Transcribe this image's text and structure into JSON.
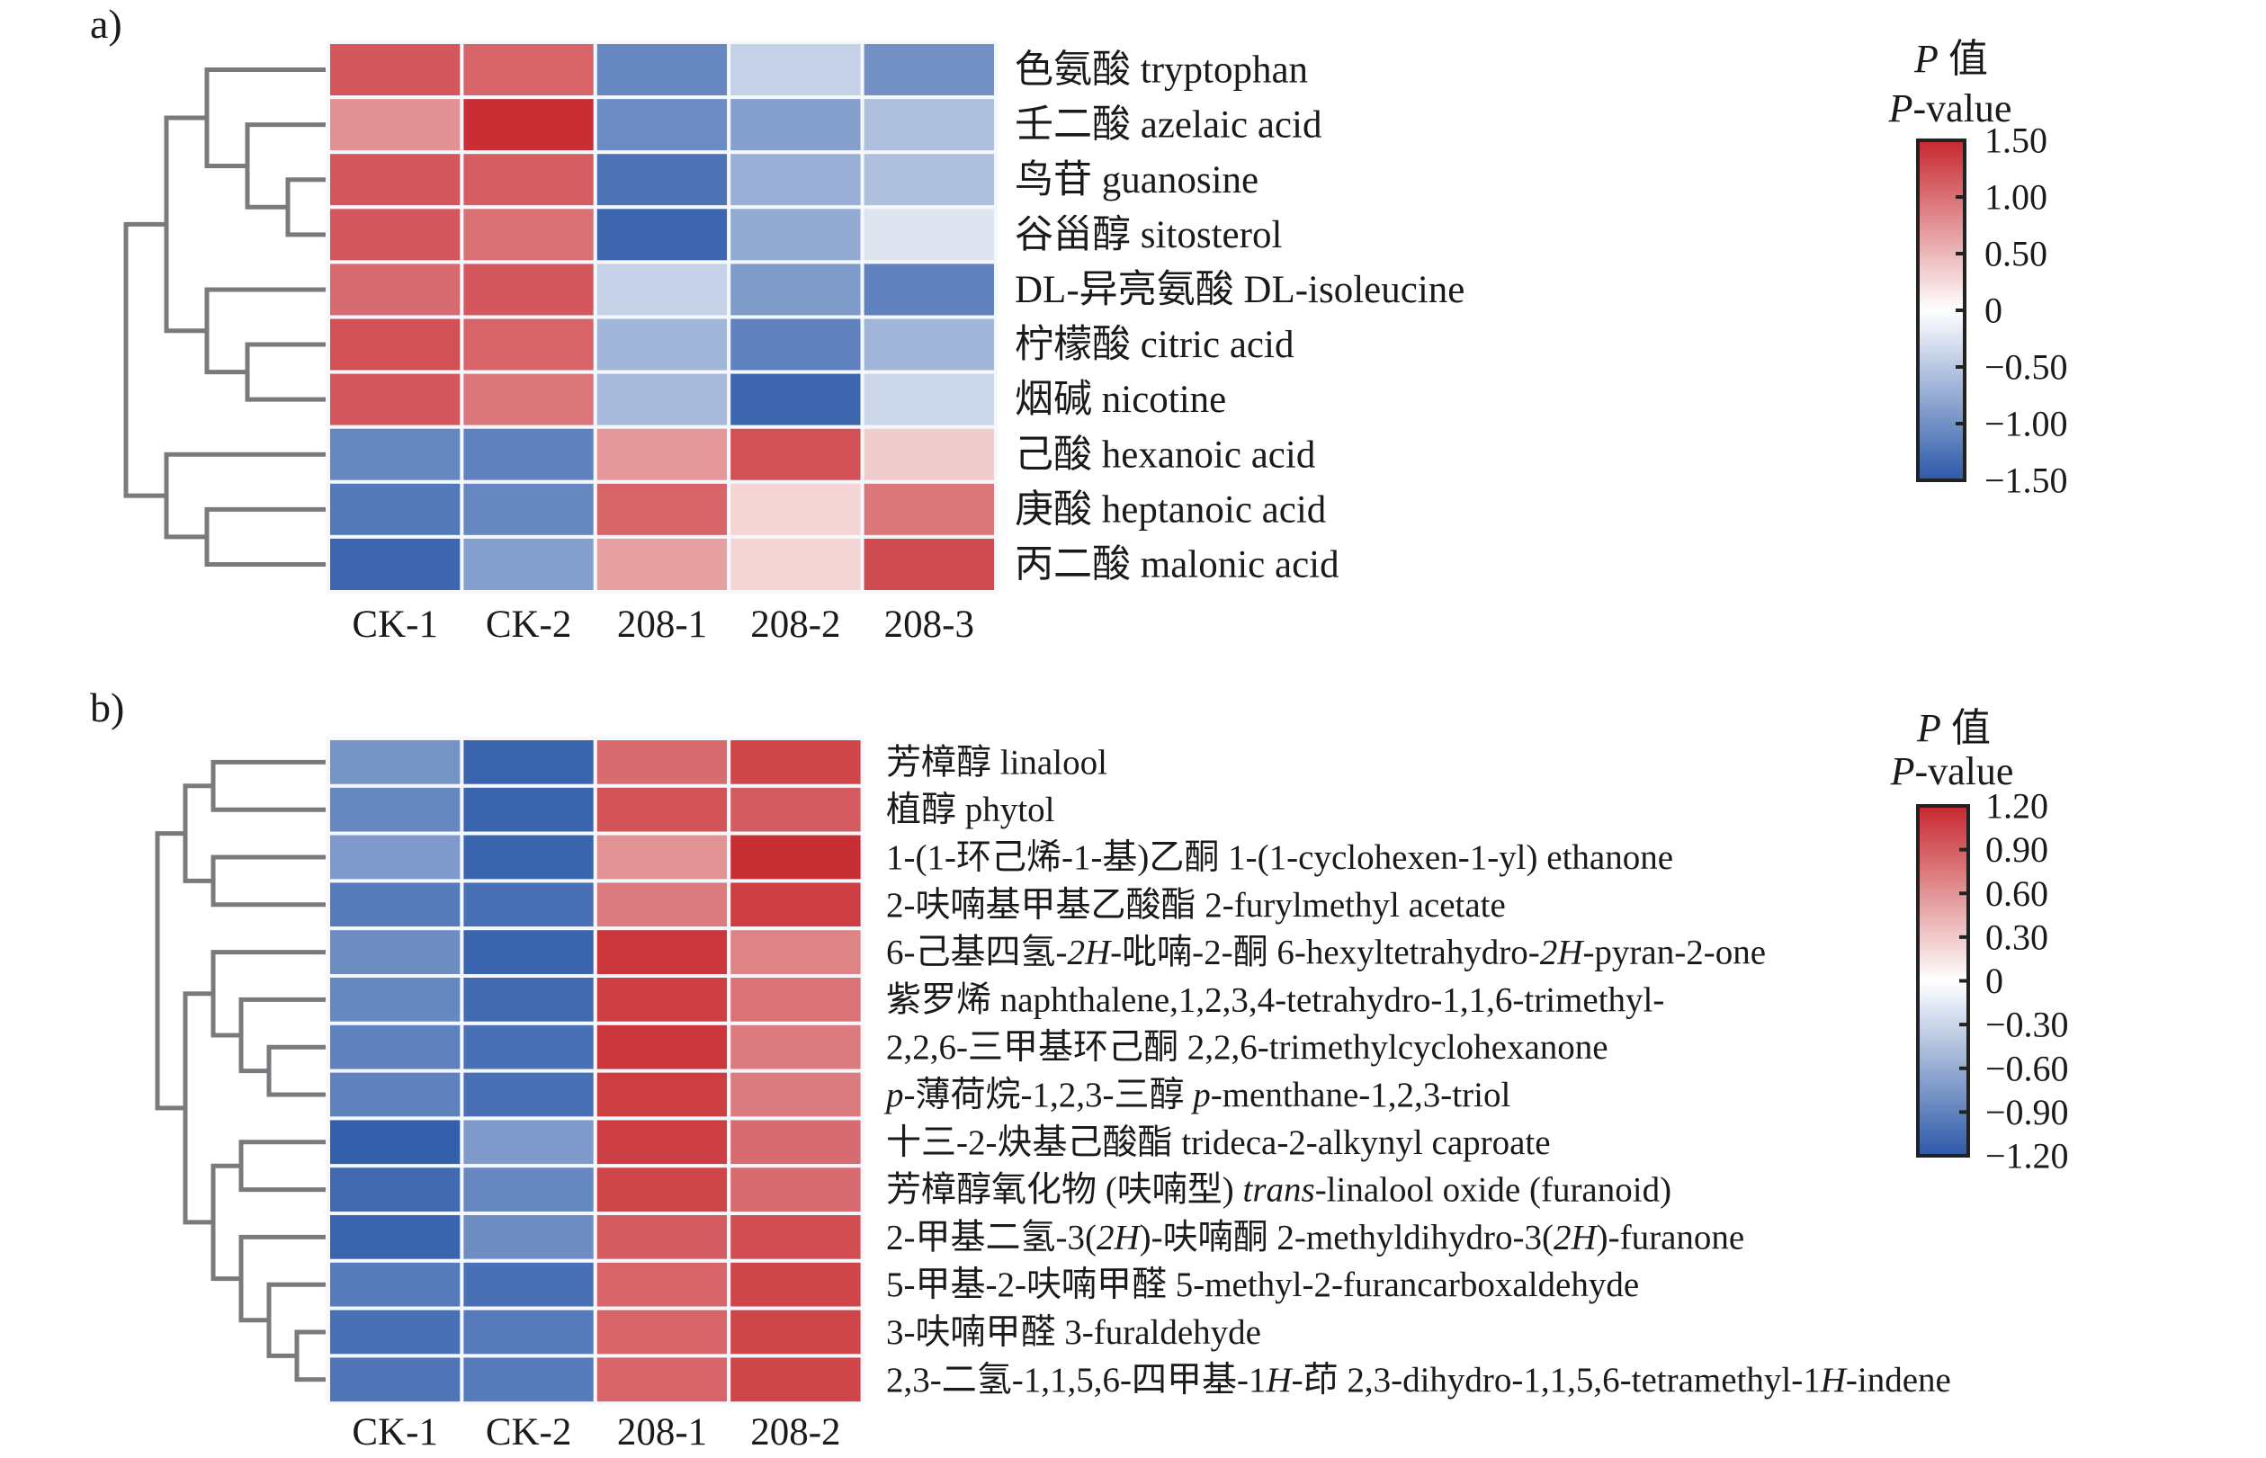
{
  "chart_data": [
    {
      "type": "heatmap",
      "panel_label": "a)",
      "columns": [
        "CK-1",
        "CK-2",
        "208-1",
        "208-2",
        "208-3"
      ],
      "rows": [
        {
          "segments": [
            {
              "t": "色氨酸 tryptophan"
            }
          ]
        },
        {
          "segments": [
            {
              "t": "壬二酸 azelaic acid"
            }
          ]
        },
        {
          "segments": [
            {
              "t": "鸟苷 guanosine"
            }
          ]
        },
        {
          "segments": [
            {
              "t": "谷甾醇 sitosterol"
            }
          ]
        },
        {
          "segments": [
            {
              "t": "DL-异亮氨酸 DL-isoleucine"
            }
          ]
        },
        {
          "segments": [
            {
              "t": "柠檬酸 citric acid"
            }
          ]
        },
        {
          "segments": [
            {
              "t": "烟碱 nicotine"
            }
          ]
        },
        {
          "segments": [
            {
              "t": "己酸 hexanoic acid"
            }
          ]
        },
        {
          "segments": [
            {
              "t": "庚酸 heptanoic acid"
            }
          ]
        },
        {
          "segments": [
            {
              "t": "丙二酸 malonic acid"
            }
          ]
        }
      ],
      "values": [
        [
          1.1,
          1.0,
          -1.0,
          -0.3,
          -0.9
        ],
        [
          0.65,
          1.45,
          -0.95,
          -0.75,
          -0.45
        ],
        [
          1.1,
          1.05,
          -1.2,
          -0.6,
          -0.45
        ],
        [
          1.1,
          0.9,
          -1.35,
          -0.65,
          -0.15
        ],
        [
          0.95,
          1.1,
          -0.3,
          -0.8,
          -1.05
        ],
        [
          1.15,
          1.0,
          -0.55,
          -1.05,
          -0.55
        ],
        [
          1.1,
          0.85,
          -0.5,
          -1.35,
          -0.25
        ],
        [
          -1.0,
          -1.05,
          0.6,
          1.15,
          0.25
        ],
        [
          -1.15,
          -1.0,
          1.0,
          0.2,
          0.85
        ],
        [
          -1.35,
          -0.75,
          0.55,
          0.2,
          1.2
        ]
      ],
      "dendrogram": {
        "merges": [
          [
            2,
            3,
            4.0
          ],
          [
            1,
            "m0",
            3.0
          ],
          [
            0,
            "m1",
            2.0
          ],
          [
            5,
            6,
            3.0
          ],
          [
            4,
            "m3",
            2.0
          ],
          [
            "m2",
            "m4",
            1.0
          ],
          [
            8,
            9,
            2.0
          ],
          [
            7,
            "m6",
            1.0
          ],
          [
            "m5",
            "m7",
            0.0
          ]
        ]
      },
      "legend": {
        "title_italic": "P",
        "title_cjk": " 值",
        "subtitle_italic": "P",
        "subtitle_rest": "-value",
        "range": [
          -1.5,
          1.5
        ],
        "ticks": [
          1.5,
          1.0,
          0.5,
          0,
          -0.5,
          -1.0,
          -1.5
        ],
        "tick_labels": [
          "1.50",
          "1.00",
          "0.50",
          "0",
          "−0.50",
          "−1.00",
          "−1.50"
        ]
      }
    },
    {
      "type": "heatmap",
      "panel_label": "b)",
      "columns": [
        "CK-1",
        "CK-2",
        "208-1",
        "208-2"
      ],
      "rows": [
        {
          "segments": [
            {
              "t": "芳樟醇 linalool"
            }
          ]
        },
        {
          "segments": [
            {
              "t": "植醇 phytol"
            }
          ]
        },
        {
          "segments": [
            {
              "t": "1-(1-环己烯-1-基)乙酮 1-(1-cyclohexen-1-yl) ethanone"
            }
          ]
        },
        {
          "segments": [
            {
              "t": "2-呋喃基甲基乙酸酯 2-furylmethyl acetate"
            }
          ]
        },
        {
          "segments": [
            {
              "t": "6-己基四氢-"
            },
            {
              "t": "2H",
              "i": true
            },
            {
              "t": "-吡喃-2-酮 6-hexyltetrahydro-"
            },
            {
              "t": "2H",
              "i": true
            },
            {
              "t": "-pyran-2-one"
            }
          ]
        },
        {
          "segments": [
            {
              "t": "紫罗烯 naphthalene,1,2,3,4-tetrahydro-1,1,6-trimethyl-"
            }
          ]
        },
        {
          "segments": [
            {
              "t": "2,2,6-三甲基环己酮 2,2,6-trimethylcyclohexanone"
            }
          ]
        },
        {
          "segments": [
            {
              "t": "p",
              "i": true
            },
            {
              "t": "-薄荷烷-1,2,3-三醇 "
            },
            {
              "t": "p",
              "i": true
            },
            {
              "t": "-menthane-1,2,3-triol"
            }
          ]
        },
        {
          "segments": [
            {
              "t": "十三-2-炔基己酸酯 trideca-2-alkynyl caproate"
            }
          ]
        },
        {
          "segments": [
            {
              "t": "芳樟醇氧化物 (呋喃型) "
            },
            {
              "t": "trans",
              "i": true
            },
            {
              "t": "-linalool oxide (furanoid)"
            }
          ]
        },
        {
          "segments": [
            {
              "t": "2-甲基二氢-3("
            },
            {
              "t": "2H",
              "i": true
            },
            {
              "t": ")-呋喃酮 2-methyldihydro-3("
            },
            {
              "t": "2H",
              "i": true
            },
            {
              "t": ")-furanone"
            }
          ]
        },
        {
          "segments": [
            {
              "t": "5-甲基-2-呋喃甲醛 5-methyl-2-furancarboxaldehyde"
            }
          ]
        },
        {
          "segments": [
            {
              "t": "3-呋喃甲醛 3-furaldehyde"
            }
          ]
        },
        {
          "segments": [
            {
              "t": "2,3-二氢-1,1,5,6-四甲基-1"
            },
            {
              "t": "H",
              "i": true
            },
            {
              "t": "-茚 2,3-dihydro-1,1,5,6-tetramethyl-1"
            },
            {
              "t": "H",
              "i": true
            },
            {
              "t": "-indene"
            }
          ]
        }
      ],
      "values": [
        [
          -0.7,
          -1.1,
          0.75,
          1.0
        ],
        [
          -0.8,
          -1.1,
          0.9,
          0.85
        ],
        [
          -0.65,
          -1.1,
          0.5,
          1.15
        ],
        [
          -0.9,
          -1.0,
          0.65,
          1.05
        ],
        [
          -0.75,
          -1.1,
          1.1,
          0.6
        ],
        [
          -0.8,
          -1.05,
          1.05,
          0.7
        ],
        [
          -0.85,
          -1.0,
          1.1,
          0.65
        ],
        [
          -0.85,
          -1.0,
          1.05,
          0.65
        ],
        [
          -1.15,
          -0.65,
          1.05,
          0.75
        ],
        [
          -1.05,
          -0.8,
          1.0,
          0.75
        ],
        [
          -1.1,
          -0.75,
          0.85,
          0.95
        ],
        [
          -0.9,
          -1.0,
          0.8,
          1.0
        ],
        [
          -1.0,
          -0.9,
          0.8,
          1.0
        ],
        [
          -0.95,
          -0.9,
          0.8,
          1.0
        ]
      ],
      "dendrogram": {
        "merges": [
          [
            0,
            1,
            2.0
          ],
          [
            2,
            3,
            2.0
          ],
          [
            "m0",
            "m1",
            1.0
          ],
          [
            6,
            7,
            4.0
          ],
          [
            5,
            "m3",
            3.0
          ],
          [
            4,
            "m4",
            2.0
          ],
          [
            8,
            9,
            3.0
          ],
          [
            12,
            13,
            5.0
          ],
          [
            11,
            "m7",
            4.0
          ],
          [
            10,
            "m8",
            3.0
          ],
          [
            "m6",
            "m9",
            2.0
          ],
          [
            "m5",
            "m10",
            1.0
          ],
          [
            "m2",
            "m11",
            0.0
          ]
        ]
      },
      "legend": {
        "title_italic": "P",
        "title_cjk": " 值",
        "subtitle_italic": "P",
        "subtitle_rest": "-value",
        "range": [
          -1.2,
          1.2
        ],
        "ticks": [
          1.2,
          0.9,
          0.6,
          0.3,
          0,
          -0.3,
          -0.6,
          -0.9,
          -1.2
        ],
        "tick_labels": [
          "1.20",
          "0.90",
          "0.60",
          "0.30",
          "0",
          "−0.30",
          "−0.60",
          "−0.90",
          "−1.20"
        ]
      }
    }
  ],
  "colors": {
    "low": "#2c59a8",
    "mid": "#ffffff",
    "high": "#c6282e",
    "dendrogram": "#7a7a7e",
    "text": "#1a1a1a"
  }
}
